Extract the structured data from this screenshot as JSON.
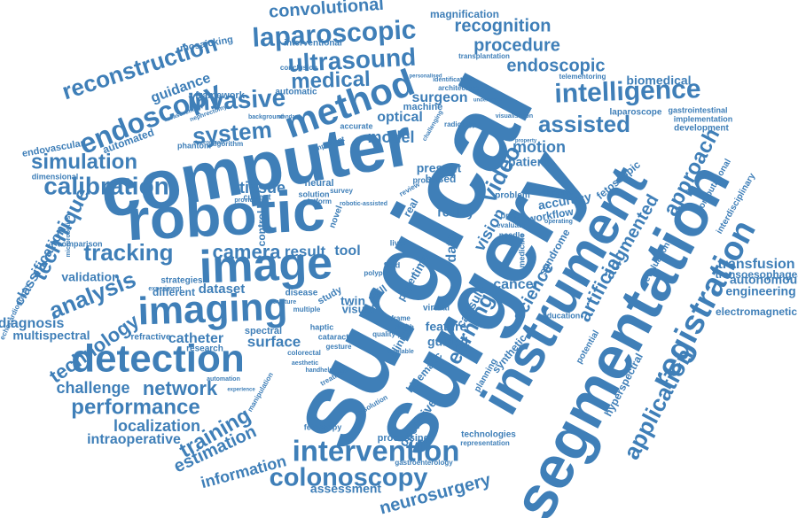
{
  "theme": {
    "word_color": "#3f7fb8",
    "background": "#ffffff"
  },
  "words": [
    "surgical",
    "surgery",
    "computer",
    "robotic",
    "segmentation",
    "instrument",
    "image",
    "imaging",
    "detection",
    "method",
    "registration",
    "intervention",
    "endoscopy",
    "laparoscopic",
    "intelligence",
    "reconstruction",
    "calibration",
    "colonoscopy",
    "ultrasound",
    "invasive",
    "system",
    "medical",
    "assisted",
    "learning",
    "application",
    "tracking",
    "analysis",
    "technique",
    "simulation",
    "network",
    "performance",
    "training",
    "estimation",
    "technology",
    "camera",
    "convolutional",
    "recognition",
    "procedure",
    "endoscopic",
    "approach",
    "video",
    "motion",
    "artificial",
    "augmented",
    "science",
    "vision",
    "tissue",
    "result",
    "tool",
    "dataset",
    "information",
    "neurosurgery",
    "localization",
    "intraoperative",
    "assessment",
    "classification",
    "challenge",
    "diagnosis",
    "multispectral",
    "validation",
    "transfusion",
    "engineering",
    "autonomous",
    "transoesophageal",
    "electromagnetic",
    "hyperspectral",
    "surface",
    "catheter",
    "cancer",
    "model",
    "optical",
    "guidance",
    "biomedical",
    "magnification",
    "mosaicking",
    "interventional",
    "transplantation",
    "identification",
    "laparoscope",
    "gastrointestinal",
    "development",
    "implementation",
    "fetoscopic",
    "computational",
    "interdisciplinary",
    "telementoring",
    "architecture",
    "visualisation",
    "machine",
    "radiology",
    "accurate",
    "framework",
    "automatic",
    "automated",
    "endovascular",
    "dimensional",
    "phantom",
    "algorithm",
    "neural",
    "surgeon",
    "patient",
    "present",
    "based",
    "accuracy",
    "workflow",
    "syndrome",
    "reality",
    "data",
    "control",
    "problem",
    "evaluation",
    "capsule",
    "feature",
    "guided",
    "virtual",
    "planning",
    "kinematic",
    "operative",
    "synthetic",
    "processing",
    "technologies",
    "representation",
    "gastroenterology",
    "fetoscopy",
    "visual",
    "spectral",
    "research",
    "different",
    "strategies",
    "comparison",
    "microrobotics",
    "echocardiography",
    "refractive",
    "twin",
    "skill",
    "study",
    "haptic",
    "cataract",
    "paper",
    "clinical",
    "education",
    "potential",
    "conclusion",
    "current",
    "solution",
    "provide",
    "novel",
    "survey",
    "needle",
    "evaluate",
    "objective",
    "breast",
    "medicine",
    "liver",
    "field",
    "depth",
    "frame",
    "quality",
    "disease",
    "multiple",
    "colorectal",
    "aesthetic",
    "handheld",
    "manipulation",
    "treatment",
    "resolution",
    "gesture",
    "available",
    "automation",
    "experience",
    "operating",
    "important",
    "background",
    "standard",
    "nephrectomy",
    "environment",
    "measurement",
    "personalised",
    "underwater",
    "challenging",
    "property",
    "robotic-assisted",
    "real",
    "time",
    "review",
    "probe",
    "polyp",
    "platform",
    "structure",
    "experiment"
  ]
}
